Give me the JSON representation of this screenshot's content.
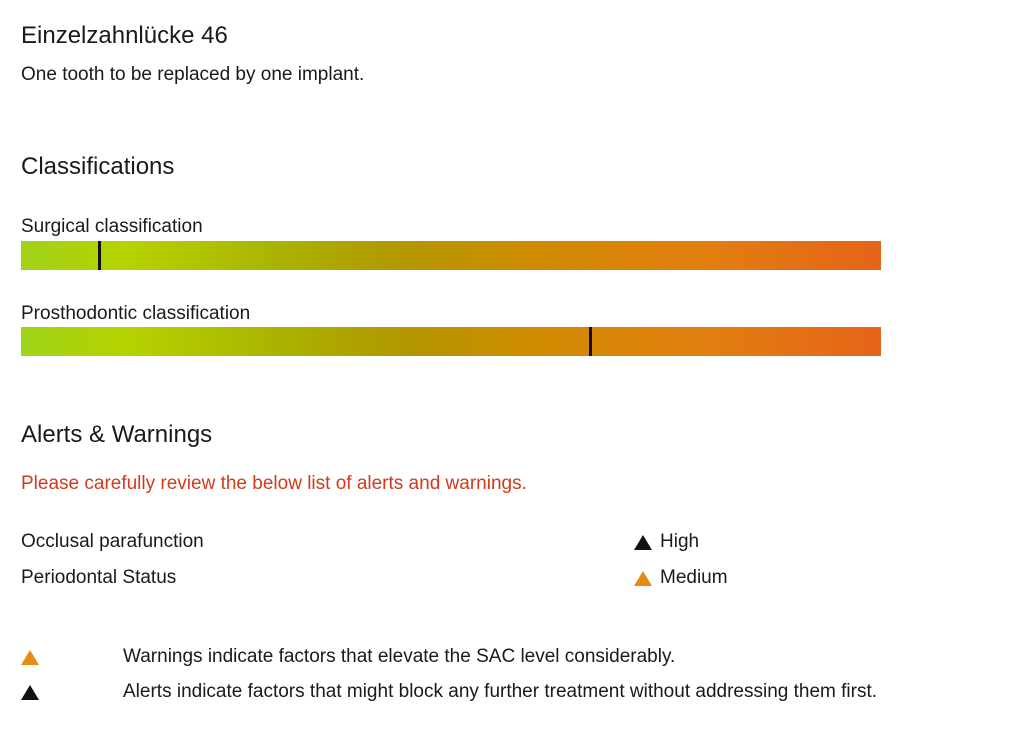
{
  "header": {
    "title": "Einzelzahnlücke 46",
    "subtitle": "One tooth to be replaced by one implant."
  },
  "classifications": {
    "heading": "Classifications",
    "surgical": {
      "label": "Surgical classification",
      "level_fraction": 0.09
    },
    "prosthodontic": {
      "label": "Prosthodontic classification",
      "level_fraction": 0.66
    },
    "colors": {
      "bar_start": "#9fd31a",
      "bar_end": "#e56418",
      "marker": "#111111"
    }
  },
  "alerts": {
    "heading": "Alerts & Warnings",
    "intro": "Please carefully review the below list of alerts and warnings.",
    "intro_color": "#d33a1c",
    "items": [
      {
        "label": "Occlusal parafunction",
        "level": "High",
        "icon": "alert-triangle-black-icon"
      },
      {
        "label": "Periodontal Status",
        "level": "Medium",
        "icon": "warning-triangle-orange-icon"
      }
    ]
  },
  "legend": {
    "warning": {
      "icon": "warning-triangle-orange-icon",
      "text": "Warnings indicate factors that elevate the SAC level considerably."
    },
    "alert": {
      "icon": "alert-triangle-black-icon",
      "text": "Alerts indicate factors that might block any further treatment without addressing them first."
    }
  }
}
